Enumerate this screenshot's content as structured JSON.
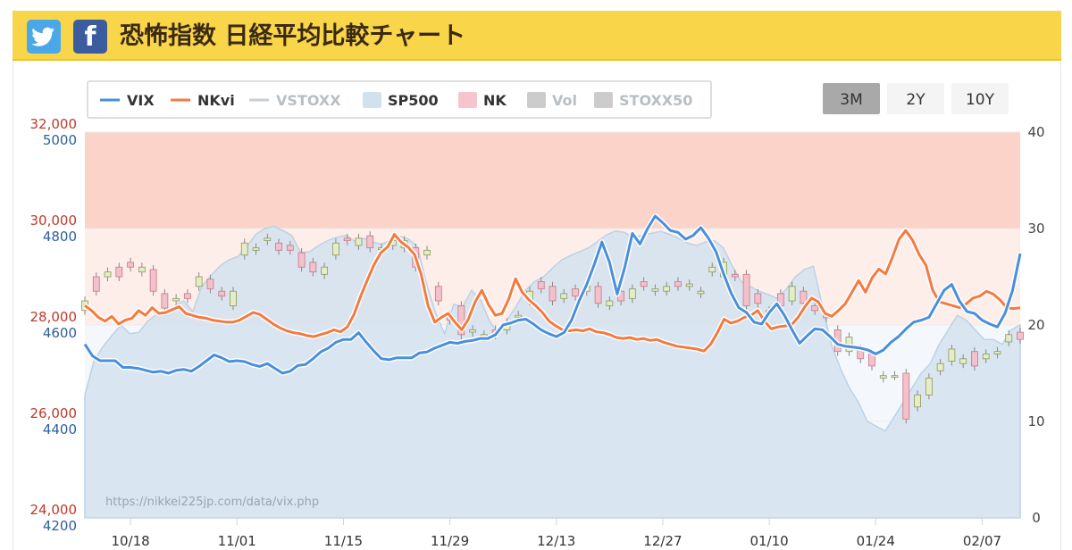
{
  "header": {
    "title": "恐怖指数 日経平均比較チャート",
    "twitter_icon": "twitter-icon",
    "facebook_icon": "facebook-icon",
    "bg_color": "#f9d54a"
  },
  "range_buttons": [
    {
      "label": "3M",
      "active": true
    },
    {
      "label": "2Y",
      "active": false
    },
    {
      "label": "10Y",
      "active": false
    }
  ],
  "watermark": "https://nikkei225jp.com/data/vix.php",
  "chart_data": {
    "type": "line",
    "legend_position": "top-left",
    "legend": [
      {
        "name": "VIX",
        "kind": "line",
        "color": "#4a8fdb",
        "enabled": true
      },
      {
        "name": "NKvi",
        "kind": "line",
        "color": "#f47a40",
        "enabled": true
      },
      {
        "name": "VSTOXX",
        "kind": "line",
        "color": "#c9ced6",
        "enabled": false
      },
      {
        "name": "SP500",
        "kind": "area",
        "color": "#d2e1ee",
        "enabled": true
      },
      {
        "name": "NK",
        "kind": "area",
        "color": "#f6c4cc",
        "enabled": true
      },
      {
        "name": "Vol",
        "kind": "area",
        "color": "#cccccc",
        "enabled": false
      },
      {
        "name": "STOXX50",
        "kind": "area",
        "color": "#cccccc",
        "enabled": false
      }
    ],
    "x_tick_labels": [
      "10/18",
      "11/01",
      "11/15",
      "11/29",
      "12/13",
      "12/27",
      "01/10",
      "01/24",
      "02/07"
    ],
    "x_range": [
      "10/12",
      "02/12"
    ],
    "left_axis_nk": {
      "ticks": [
        "24,000",
        "26,000",
        "28,000",
        "30,000",
        "32,000"
      ],
      "values": [
        24000,
        26000,
        28000,
        30000,
        32000
      ],
      "color": "#c0392b",
      "range": [
        24000,
        32000
      ]
    },
    "left_axis_sp500": {
      "ticks": [
        "4200",
        "4400",
        "4600",
        "4800",
        "5000"
      ],
      "values": [
        4200,
        4400,
        4600,
        4800,
        5000
      ],
      "color": "#2e5f9e",
      "range": [
        4200,
        5000
      ]
    },
    "right_axis_vix": {
      "ticks": [
        "0",
        "10",
        "20",
        "30",
        "40"
      ],
      "values": [
        0,
        10,
        20,
        30,
        40
      ],
      "range": [
        0,
        40
      ]
    },
    "vix_bands": [
      {
        "from": 30,
        "to": 40,
        "color": "#fcd3c9"
      },
      {
        "from": 20,
        "to": 30,
        "color": "#fdeeea"
      }
    ],
    "grid": true,
    "series": [
      {
        "name": "VIX",
        "x_offset_days": [
          0,
          1,
          2,
          3,
          4,
          5,
          6,
          7,
          8,
          9,
          10,
          11,
          12,
          13,
          14,
          15,
          16,
          17,
          18,
          19,
          20,
          21,
          22,
          23,
          24,
          25,
          26,
          27,
          28,
          29,
          30,
          31,
          32,
          33,
          34,
          35,
          36,
          37,
          38,
          39,
          40,
          41,
          42,
          43,
          44,
          45,
          46,
          47,
          48,
          49,
          50,
          51,
          52,
          53,
          54,
          55,
          56,
          57,
          58,
          59,
          60,
          61,
          62,
          63,
          64,
          65,
          66,
          67,
          68,
          69,
          70,
          71,
          72,
          73,
          74,
          75,
          76,
          77,
          78,
          79,
          80,
          81,
          82,
          83,
          84,
          85,
          86,
          87,
          88,
          89,
          90,
          91,
          92,
          93,
          94,
          95,
          96,
          97,
          98,
          99,
          100,
          101,
          102,
          103,
          104,
          105,
          106,
          107,
          108,
          109,
          110,
          111,
          112,
          113,
          114,
          115,
          116,
          117,
          118,
          119,
          120,
          121,
          122,
          123
        ],
        "values": [
          18.0,
          16.8,
          16.3,
          16.3,
          16.3,
          15.6,
          15.6,
          15.5,
          15.3,
          15.1,
          15.2,
          15.0,
          15.3,
          15.4,
          15.2,
          15.7,
          16.3,
          16.9,
          16.6,
          16.2,
          16.3,
          16.2,
          15.9,
          15.7,
          16.0,
          15.5,
          15.0,
          15.2,
          15.8,
          15.9,
          16.5,
          17.2,
          17.6,
          18.2,
          18.5,
          18.5,
          19.2,
          18.2,
          17.3,
          16.5,
          16.4,
          16.6,
          16.6,
          16.6,
          17.1,
          17.2,
          17.6,
          17.9,
          18.2,
          18.1,
          18.3,
          18.4,
          18.6,
          18.6,
          19.0,
          20.0,
          20.2,
          20.5,
          20.6,
          20.1,
          19.5,
          19.1,
          18.8,
          19.2,
          20.5,
          22.5,
          24.2,
          26.3,
          28.6,
          26.5,
          23.2,
          26.0,
          29.5,
          28.4,
          30.0,
          31.3,
          30.6,
          29.8,
          29.6,
          28.9,
          29.3,
          30.1,
          29.0,
          27.6,
          25.3,
          23.3,
          21.8,
          21.3,
          20.3,
          20.1,
          21.3,
          22.2,
          21.0,
          19.5,
          18.1,
          18.9,
          19.6,
          19.5,
          18.8,
          18.0,
          17.8,
          17.7,
          17.6,
          17.4,
          17.0,
          17.4,
          18.2,
          18.8,
          19.6,
          20.3,
          20.5,
          20.8,
          22.2,
          23.6,
          24.2,
          22.5,
          21.4,
          21.2,
          20.5,
          20.1,
          19.8,
          21.2,
          23.6,
          27.4
        ]
      },
      {
        "name": "NKvi",
        "values": [
          22.0,
          21.5,
          20.8,
          20.4,
          20.9,
          20.1,
          20.5,
          20.7,
          21.5,
          21.0,
          21.8,
          21.2,
          21.3,
          21.6,
          21.9,
          21.2,
          21.0,
          20.8,
          20.7,
          20.5,
          20.4,
          20.3,
          20.3,
          20.5,
          20.9,
          21.3,
          21.1,
          20.6,
          20.1,
          19.7,
          19.4,
          19.2,
          19.1,
          18.9,
          18.8,
          19.0,
          19.2,
          19.5,
          19.3,
          19.8,
          21.1,
          23.0,
          24.7,
          26.3,
          27.5,
          28.1,
          29.4,
          28.6,
          28.1,
          27.3,
          25.2,
          22.0,
          20.3,
          20.8,
          21.2,
          20.3,
          19.5,
          20.6,
          22.4,
          23.6,
          22.1,
          21.0,
          21.2,
          22.7,
          24.8,
          23.4,
          22.6,
          22.0,
          21.3,
          20.4,
          19.9,
          19.5,
          19.4,
          19.5,
          19.4,
          19.6,
          19.3,
          19.2,
          19.0,
          18.7,
          18.6,
          18.7,
          18.5,
          18.6,
          18.4,
          18.5,
          18.2,
          18.0,
          17.8,
          17.7,
          17.6,
          17.5,
          17.3,
          18.0,
          19.2,
          20.6,
          20.2,
          20.4,
          20.8,
          21.0,
          21.5,
          20.4,
          19.6,
          19.8,
          19.9,
          20.0,
          20.8,
          21.9,
          22.8,
          22.4,
          21.2,
          20.9,
          21.5,
          22.2,
          23.4,
          24.6,
          23.4,
          24.9,
          25.8,
          25.3,
          27.0,
          28.9,
          29.8,
          28.8,
          27.3,
          26.2,
          23.6,
          22.4,
          22.2,
          22.0,
          21.8,
          22.2,
          22.8,
          23.0,
          23.5,
          23.2,
          22.6,
          21.8,
          21.7,
          21.8
        ]
      },
      {
        "name": "SP500",
        "values": [
          4455,
          4525,
          4555,
          4578,
          4600,
          4582,
          4585,
          4608,
          4622,
          4620,
          4640,
          4650,
          4628,
          4680,
          4702,
          4722,
          4735,
          4742,
          4762,
          4788,
          4800,
          4805,
          4796,
          4786,
          4750,
          4752,
          4765,
          4775,
          4782,
          4786,
          4774,
          4780,
          4772,
          4768,
          4776,
          4784,
          4778,
          4762,
          4684,
          4625,
          4582,
          4643,
          4638,
          4672,
          4652,
          4608,
          4582,
          4612,
          4640,
          4672,
          4690,
          4700,
          4718,
          4735,
          4744,
          4752,
          4760,
          4773,
          4787,
          4795,
          4792,
          4782,
          4786,
          4790,
          4794,
          4788,
          4780,
          4770,
          4765,
          4772,
          4775,
          4760,
          4722,
          4690,
          4680,
          4670,
          4663,
          4655,
          4675,
          4700,
          4715,
          4722,
          4640,
          4560,
          4510,
          4470,
          4440,
          4400,
          4390,
          4380,
          4410,
          4440,
          4470,
          4500,
          4520,
          4560,
          4590,
          4620,
          4610,
          4590,
          4570,
          4570,
          4560,
          4590,
          4600
        ]
      },
      {
        "name": "NK",
        "candles": [
          {
            "d": 0,
            "o": 28300,
            "c": 28500
          },
          {
            "d": 1,
            "o": 29000,
            "c": 28700
          },
          {
            "d": 2,
            "o": 29000,
            "c": 29100
          },
          {
            "d": 3,
            "o": 29200,
            "c": 29000
          },
          {
            "d": 4,
            "o": 29300,
            "c": 29200
          },
          {
            "d": 5,
            "o": 29100,
            "c": 29200
          },
          {
            "d": 6,
            "o": 29150,
            "c": 28700
          },
          {
            "d": 7,
            "o": 28650,
            "c": 28350
          },
          {
            "d": 8,
            "o": 28500,
            "c": 28550
          },
          {
            "d": 9,
            "o": 28650,
            "c": 28550
          },
          {
            "d": 10,
            "o": 28800,
            "c": 29000
          },
          {
            "d": 11,
            "o": 28950,
            "c": 28750
          },
          {
            "d": 12,
            "o": 28700,
            "c": 28600
          },
          {
            "d": 13,
            "o": 28400,
            "c": 28700
          },
          {
            "d": 14,
            "o": 29450,
            "c": 29700
          },
          {
            "d": 15,
            "o": 29550,
            "c": 29600
          },
          {
            "d": 16,
            "o": 29750,
            "c": 29800
          },
          {
            "d": 17,
            "o": 29700,
            "c": 29550
          },
          {
            "d": 18,
            "o": 29650,
            "c": 29550
          },
          {
            "d": 19,
            "o": 29500,
            "c": 29200
          },
          {
            "d": 20,
            "o": 29300,
            "c": 29100
          },
          {
            "d": 21,
            "o": 29050,
            "c": 29200
          },
          {
            "d": 22,
            "o": 29450,
            "c": 29700
          },
          {
            "d": 23,
            "o": 29800,
            "c": 29750
          },
          {
            "d": 24,
            "o": 29650,
            "c": 29800
          },
          {
            "d": 25,
            "o": 29850,
            "c": 29600
          },
          {
            "d": 26,
            "o": 29600,
            "c": 29600
          },
          {
            "d": 27,
            "o": 29650,
            "c": 29750
          },
          {
            "d": 28,
            "o": 29600,
            "c": 29750
          },
          {
            "d": 29,
            "o": 29600,
            "c": 29200
          },
          {
            "d": 30,
            "o": 29450,
            "c": 29550
          },
          {
            "d": 31,
            "o": 28800,
            "c": 28500
          },
          {
            "d": 32,
            "o": 28200,
            "c": 28100
          },
          {
            "d": 33,
            "o": 28400,
            "c": 27800
          },
          {
            "d": 34,
            "o": 27850,
            "c": 27900
          },
          {
            "d": 35,
            "o": 27750,
            "c": 27800
          },
          {
            "d": 36,
            "o": 27900,
            "c": 27800
          },
          {
            "d": 37,
            "o": 27900,
            "c": 28050
          },
          {
            "d": 38,
            "o": 28200,
            "c": 28200
          },
          {
            "d": 39,
            "o": 28500,
            "c": 28700
          },
          {
            "d": 40,
            "o": 28900,
            "c": 28750
          },
          {
            "d": 41,
            "o": 28800,
            "c": 28500
          },
          {
            "d": 42,
            "o": 28550,
            "c": 28650
          },
          {
            "d": 43,
            "o": 28750,
            "c": 28600
          },
          {
            "d": 44,
            "o": 28700,
            "c": 28800
          },
          {
            "d": 45,
            "o": 28800,
            "c": 28450
          },
          {
            "d": 46,
            "o": 28400,
            "c": 28500
          },
          {
            "d": 47,
            "o": 28700,
            "c": 28500
          },
          {
            "d": 48,
            "o": 28550,
            "c": 28750
          },
          {
            "d": 49,
            "o": 28900,
            "c": 28800
          },
          {
            "d": 50,
            "o": 28700,
            "c": 28750
          },
          {
            "d": 51,
            "o": 28700,
            "c": 28800
          },
          {
            "d": 52,
            "o": 28900,
            "c": 28800
          },
          {
            "d": 53,
            "o": 28800,
            "c": 28850
          },
          {
            "d": 54,
            "o": 28650,
            "c": 28700
          },
          {
            "d": 55,
            "o": 29100,
            "c": 29200
          },
          {
            "d": 56,
            "o": 29000,
            "c": 29300
          },
          {
            "d": 57,
            "o": 29050,
            "c": 29000
          },
          {
            "d": 58,
            "o": 29050,
            "c": 28400
          },
          {
            "d": 59,
            "o": 28650,
            "c": 28450
          },
          {
            "d": 60,
            "o": 28300,
            "c": 28300
          },
          {
            "d": 61,
            "o": 28650,
            "c": 28400
          },
          {
            "d": 62,
            "o": 28500,
            "c": 28800
          },
          {
            "d": 63,
            "o": 28700,
            "c": 28450
          },
          {
            "d": 64,
            "o": 28400,
            "c": 28300
          },
          {
            "d": 65,
            "o": 28200,
            "c": 28150
          },
          {
            "d": 66,
            "o": 27900,
            "c": 27450
          },
          {
            "d": 67,
            "o": 27450,
            "c": 27750
          },
          {
            "d": 68,
            "o": 27500,
            "c": 27300
          },
          {
            "d": 69,
            "o": 27400,
            "c": 27150
          },
          {
            "d": 70,
            "o": 26900,
            "c": 26950
          },
          {
            "d": 71,
            "o": 26950,
            "c": 26950
          },
          {
            "d": 72,
            "o": 27000,
            "c": 26050
          },
          {
            "d": 73,
            "o": 26300,
            "c": 26550
          },
          {
            "d": 74,
            "o": 26550,
            "c": 26900
          },
          {
            "d": 75,
            "o": 27050,
            "c": 27200
          },
          {
            "d": 76,
            "o": 27250,
            "c": 27500
          },
          {
            "d": 77,
            "o": 27200,
            "c": 27300
          },
          {
            "d": 78,
            "o": 27450,
            "c": 27150
          },
          {
            "d": 79,
            "o": 27300,
            "c": 27400
          },
          {
            "d": 80,
            "o": 27400,
            "c": 27450
          },
          {
            "d": 81,
            "o": 27650,
            "c": 27800
          },
          {
            "d": 82,
            "o": 27850,
            "c": 27700
          }
        ]
      }
    ]
  }
}
